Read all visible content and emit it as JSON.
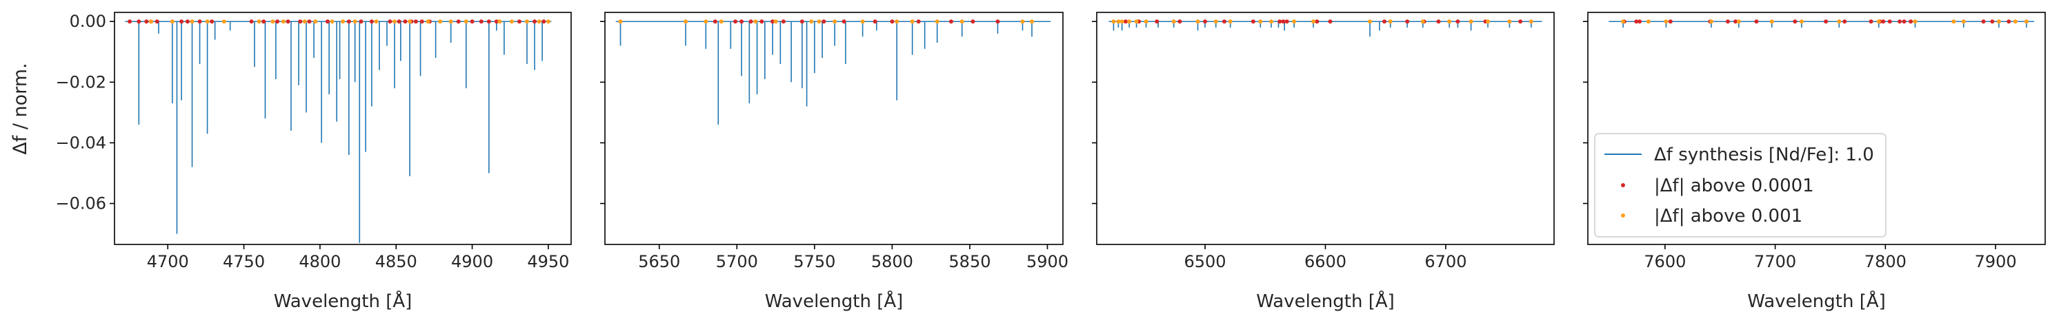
{
  "figure": {
    "ylabel": "Δf / norm.",
    "legend": {
      "placement": "center-left of panel 4",
      "entries": [
        {
          "key": "synthesis",
          "label": "Δf synthesis [Nd/Fe]: 1.0",
          "marker": "line",
          "color": "#1f77b4"
        },
        {
          "key": "above_1e-4",
          "label": "|Δf| above 0.0001",
          "marker": "dot",
          "color": "#d62728"
        },
        {
          "key": "above_1e-3",
          "label": "|Δf| above 0.001",
          "marker": "dot",
          "color": "#ff9f1a"
        }
      ]
    },
    "colors": {
      "line": "#1f77b4",
      "above_1e-4": "#d62728",
      "above_1e-3": "#ff9f1a",
      "axis": "#000000"
    }
  },
  "chart_data": [
    {
      "type": "line",
      "xlabel": "Wavelength [Å]",
      "ylabel": "Δf / norm.",
      "xlim": [
        4665,
        4965
      ],
      "ylim": [
        -0.0735,
        0.003
      ],
      "xticks": [
        4700,
        4750,
        4800,
        4850,
        4900,
        4950
      ],
      "xtick_labels": [
        "4700",
        "4750",
        "4800",
        "4850",
        "4900",
        "4950"
      ],
      "yticks": [
        0.0,
        -0.02,
        -0.04,
        -0.06
      ],
      "ytick_labels": [
        "0.00",
        "−0.02",
        "−0.04",
        "−0.06"
      ],
      "baseline_range": [
        4672,
        4952
      ],
      "lines": [
        [
          4681,
          -0.034
        ],
        [
          4694,
          -0.004
        ],
        [
          4703,
          -0.027
        ],
        [
          4706,
          -0.07
        ],
        [
          4709,
          -0.026
        ],
        [
          4716,
          -0.048
        ],
        [
          4721,
          -0.014
        ],
        [
          4726,
          -0.037
        ],
        [
          4731,
          -0.006
        ],
        [
          4741,
          -0.003
        ],
        [
          4757,
          -0.015
        ],
        [
          4764,
          -0.032
        ],
        [
          4771,
          -0.019
        ],
        [
          4781,
          -0.036
        ],
        [
          4786,
          -0.021
        ],
        [
          4791,
          -0.03
        ],
        [
          4796,
          -0.012
        ],
        [
          4801,
          -0.04
        ],
        [
          4806,
          -0.024
        ],
        [
          4811,
          -0.033
        ],
        [
          4813,
          -0.019
        ],
        [
          4819,
          -0.044
        ],
        [
          4823,
          -0.02
        ],
        [
          4826,
          -0.073
        ],
        [
          4830,
          -0.043
        ],
        [
          4834,
          -0.028
        ],
        [
          4839,
          -0.016
        ],
        [
          4844,
          -0.008
        ],
        [
          4849,
          -0.022
        ],
        [
          4853,
          -0.013
        ],
        [
          4859,
          -0.051
        ],
        [
          4866,
          -0.018
        ],
        [
          4876,
          -0.012
        ],
        [
          4886,
          -0.007
        ],
        [
          4896,
          -0.022
        ],
        [
          4911,
          -0.05
        ],
        [
          4916,
          -0.003
        ],
        [
          4921,
          -0.011
        ],
        [
          4936,
          -0.014
        ],
        [
          4941,
          -0.016
        ],
        [
          4946,
          -0.013
        ]
      ],
      "above_1e-4": [
        4675,
        4681,
        4686,
        4689,
        4693,
        4709,
        4713,
        4721,
        4729,
        4755,
        4763,
        4772,
        4779,
        4787,
        4793,
        4805,
        4819,
        4827,
        4834,
        4846,
        4852,
        4856,
        4860,
        4863,
        4867,
        4872,
        4891,
        4900,
        4906,
        4911,
        4916,
        4931,
        4941,
        4947
      ],
      "above_1e-3": [
        4689,
        4703,
        4716,
        4726,
        4737,
        4760,
        4769,
        4776,
        4790,
        4797,
        4808,
        4815,
        4823,
        4837,
        4849,
        4859,
        4871,
        4879,
        4886,
        4896,
        4918,
        4926,
        4936,
        4944,
        4950
      ]
    },
    {
      "type": "line",
      "xlabel": "Wavelength [Å]",
      "xlim": [
        5615,
        5910
      ],
      "ylim": [
        -0.0735,
        0.003
      ],
      "xticks": [
        5650,
        5700,
        5750,
        5800,
        5850,
        5900
      ],
      "xtick_labels": [
        "5650",
        "5700",
        "5750",
        "5800",
        "5850",
        "5900"
      ],
      "yticks": [
        0.0,
        -0.02,
        -0.04,
        -0.06
      ],
      "ytick_labels": [
        "",
        "",
        "",
        ""
      ],
      "baseline_range": [
        5622,
        5902
      ],
      "lines": [
        [
          5625,
          -0.008
        ],
        [
          5667,
          -0.008
        ],
        [
          5680,
          -0.009
        ],
        [
          5688,
          -0.034
        ],
        [
          5696,
          -0.009
        ],
        [
          5703,
          -0.018
        ],
        [
          5708,
          -0.027
        ],
        [
          5713,
          -0.024
        ],
        [
          5718,
          -0.019
        ],
        [
          5723,
          -0.011
        ],
        [
          5728,
          -0.014
        ],
        [
          5735,
          -0.02
        ],
        [
          5742,
          -0.022
        ],
        [
          5745,
          -0.028
        ],
        [
          5750,
          -0.017
        ],
        [
          5755,
          -0.012
        ],
        [
          5763,
          -0.008
        ],
        [
          5770,
          -0.014
        ],
        [
          5781,
          -0.005
        ],
        [
          5790,
          -0.003
        ],
        [
          5803,
          -0.026
        ],
        [
          5813,
          -0.011
        ],
        [
          5821,
          -0.009
        ],
        [
          5829,
          -0.007
        ],
        [
          5845,
          -0.005
        ],
        [
          5868,
          -0.004
        ],
        [
          5884,
          -0.003
        ],
        [
          5890,
          -0.005
        ]
      ],
      "above_1e-4": [
        5686,
        5699,
        5703,
        5709,
        5716,
        5723,
        5730,
        5742,
        5756,
        5769,
        5789,
        5800,
        5817,
        5838,
        5852,
        5868
      ],
      "above_1e-3": [
        5625,
        5667,
        5680,
        5690,
        5712,
        5725,
        5748,
        5753,
        5763,
        5781,
        5803,
        5813,
        5829,
        5845,
        5884,
        5890
      ]
    },
    {
      "type": "line",
      "xlabel": "Wavelength [Å]",
      "xlim": [
        6410,
        6790
      ],
      "ylim": [
        -0.0735,
        0.003
      ],
      "xticks": [
        6500,
        6600,
        6700
      ],
      "xtick_labels": [
        "6500",
        "6600",
        "6700"
      ],
      "yticks": [
        0.0,
        -0.02,
        -0.04,
        -0.06
      ],
      "ytick_labels": [
        "",
        "",
        "",
        ""
      ],
      "baseline_range": [
        6420,
        6780
      ],
      "lines": [
        [
          6424,
          -0.003
        ],
        [
          6428,
          -0.002
        ],
        [
          6431,
          -0.003
        ],
        [
          6437,
          -0.002
        ],
        [
          6443,
          -0.002
        ],
        [
          6451,
          -0.002
        ],
        [
          6461,
          -0.002
        ],
        [
          6474,
          -0.002
        ],
        [
          6494,
          -0.003
        ],
        [
          6500,
          -0.002
        ],
        [
          6509,
          -0.002
        ],
        [
          6521,
          -0.002
        ],
        [
          6546,
          -0.002
        ],
        [
          6555,
          -0.002
        ],
        [
          6561,
          -0.002
        ],
        [
          6566,
          -0.003
        ],
        [
          6574,
          -0.002
        ],
        [
          6590,
          -0.002
        ],
        [
          6637,
          -0.005
        ],
        [
          6645,
          -0.003
        ],
        [
          6654,
          -0.002
        ],
        [
          6668,
          -0.002
        ],
        [
          6681,
          -0.002
        ],
        [
          6703,
          -0.002
        ],
        [
          6710,
          -0.002
        ],
        [
          6721,
          -0.003
        ],
        [
          6735,
          -0.002
        ],
        [
          6753,
          -0.002
        ],
        [
          6771,
          -0.002
        ]
      ],
      "above_1e-4": [
        6434,
        6445,
        6460,
        6479,
        6500,
        6516,
        6540,
        6562,
        6565,
        6568,
        6593,
        6604,
        6649,
        6668,
        6682,
        6694,
        6710,
        6733,
        6762
      ],
      "above_1e-3": [
        6424,
        6428,
        6431,
        6437,
        6443,
        6451,
        6474,
        6494,
        6509,
        6521,
        6546,
        6555,
        6574,
        6590,
        6637,
        6654,
        6681,
        6703,
        6721,
        6735,
        6753,
        6771
      ]
    },
    {
      "type": "line",
      "xlabel": "Wavelength [Å]",
      "xlim": [
        7530,
        7945
      ],
      "ylim": [
        -0.0735,
        0.003
      ],
      "xticks": [
        7600,
        7700,
        7800,
        7900
      ],
      "xtick_labels": [
        "7600",
        "7700",
        "7800",
        "7900"
      ],
      "yticks": [
        0.0,
        -0.02,
        -0.04,
        -0.06
      ],
      "ytick_labels": [
        "",
        "",
        "",
        ""
      ],
      "baseline_range": [
        7549,
        7935
      ],
      "lines": [
        [
          7562,
          -0.002
        ],
        [
          7601,
          -0.002
        ],
        [
          7642,
          -0.002
        ],
        [
          7667,
          -0.002
        ],
        [
          7697,
          -0.002
        ],
        [
          7724,
          -0.002
        ],
        [
          7758,
          -0.002
        ],
        [
          7794,
          -0.002
        ],
        [
          7827,
          -0.002
        ],
        [
          7871,
          -0.002
        ],
        [
          7903,
          -0.002
        ],
        [
          7928,
          -0.002
        ]
      ],
      "above_1e-4": [
        7563,
        7574,
        7577,
        7605,
        7641,
        7657,
        7664,
        7683,
        7718,
        7746,
        7763,
        7787,
        7795,
        7798,
        7804,
        7813,
        7817,
        7823,
        7889,
        7897,
        7912
      ],
      "above_1e-3": [
        7562,
        7585,
        7601,
        7642,
        7667,
        7697,
        7724,
        7758,
        7794,
        7827,
        7862,
        7871,
        7903,
        7918,
        7928
      ]
    }
  ]
}
